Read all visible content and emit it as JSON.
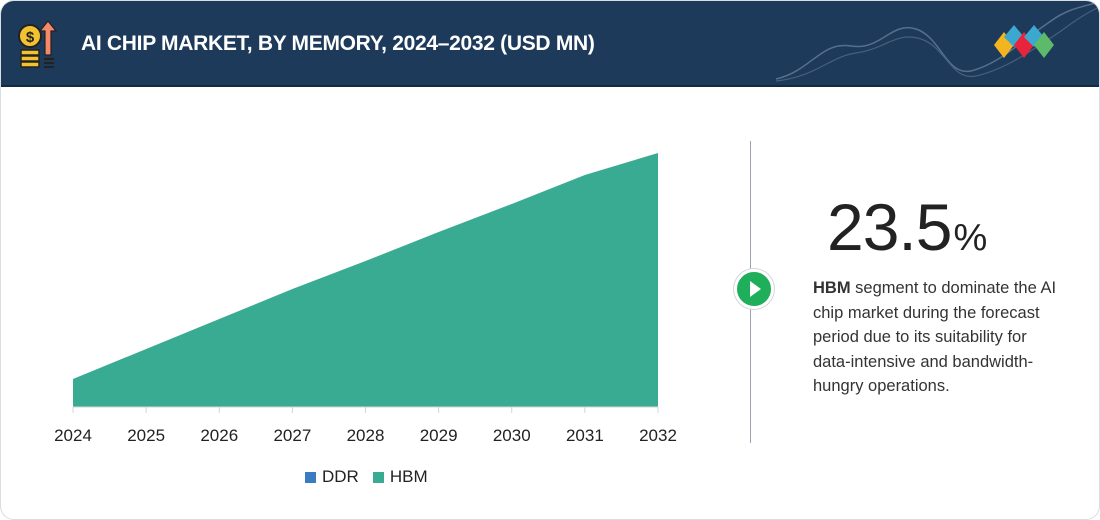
{
  "header": {
    "title": "AI CHIP MARKET, BY MEMORY, 2024–2032 (USD MN)",
    "icon": "money-growth-icon",
    "logo_colors": [
      "#f2b51f",
      "#e8243c",
      "#3aa8cf",
      "#5dba6a"
    ]
  },
  "highlight": {
    "value": "23.5",
    "unit": "%",
    "bold": "HBM",
    "text": " segment to dominate the AI chip market during the forecast period due to its suitability for data-intensive and bandwidth-hungry operations."
  },
  "chart_data": {
    "type": "area",
    "stacked": true,
    "categories": [
      "2024",
      "2025",
      "2026",
      "2027",
      "2028",
      "2029",
      "2030",
      "2031",
      "2032"
    ],
    "series": [
      {
        "name": "DDR",
        "color": "#3a7cc1",
        "values": [
          0,
          0,
          0,
          0,
          0,
          0,
          0,
          0,
          0
        ]
      },
      {
        "name": "HBM",
        "color": "#3aab93",
        "values": [
          28,
          58,
          88,
          118,
          146,
          175,
          203,
          232,
          254
        ]
      }
    ],
    "ylim": [
      0,
      260
    ],
    "y_axis_shown": false,
    "grid": false,
    "legend": "bottom"
  }
}
